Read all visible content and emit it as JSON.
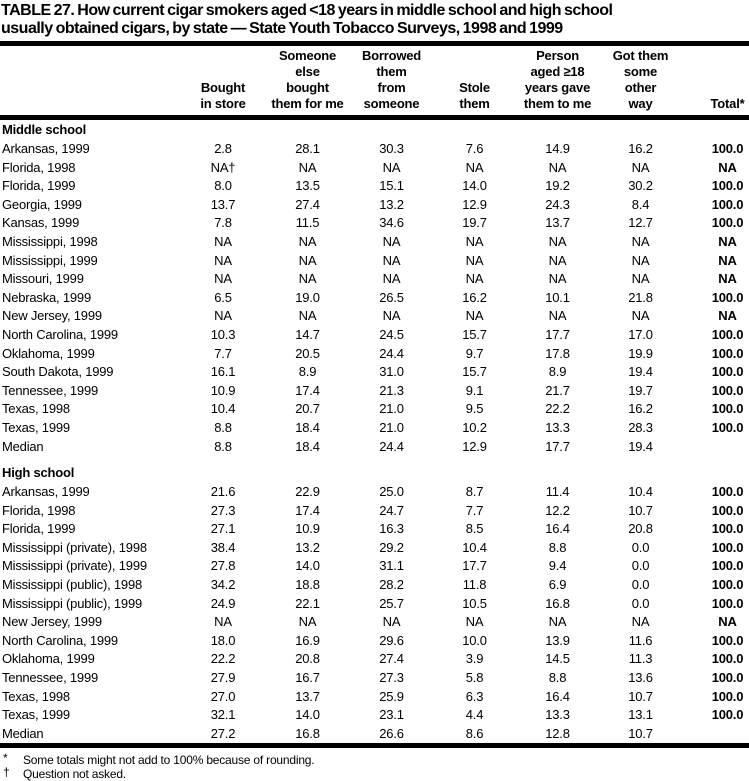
{
  "title": "TABLE 27. How current cigar smokers aged <18 years in middle school and high school\nusually obtained cigars, by state — State Youth Tobacco Surveys, 1998 and 1999",
  "table": {
    "column_headers": [
      "",
      "Bought\nin store",
      "Someone\nelse\nbought\nthem for me",
      "Borrowed\nthem\nfrom\nsomeone",
      "Stole\nthem",
      "Person\naged ≥18\nyears gave\nthem to me",
      "Got them\nsome\nother\nway",
      "Total*"
    ],
    "sections": [
      {
        "label": "Middle school",
        "rows": [
          [
            "Arkansas, 1999",
            "2.8",
            "28.1",
            "30.3",
            "7.6",
            "14.9",
            "16.2",
            "100.0"
          ],
          [
            "Florida, 1998",
            "NA†",
            "NA",
            "NA",
            "NA",
            "NA",
            "NA",
            "NA"
          ],
          [
            "Florida, 1999",
            "8.0",
            "13.5",
            "15.1",
            "14.0",
            "19.2",
            "30.2",
            "100.0"
          ],
          [
            "Georgia, 1999",
            "13.7",
            "27.4",
            "13.2",
            "12.9",
            "24.3",
            "8.4",
            "100.0"
          ],
          [
            "Kansas, 1999",
            "7.8",
            "11.5",
            "34.6",
            "19.7",
            "13.7",
            "12.7",
            "100.0"
          ],
          [
            "Mississippi, 1998",
            "NA",
            "NA",
            "NA",
            "NA",
            "NA",
            "NA",
            "NA"
          ],
          [
            "Mississippi, 1999",
            "NA",
            "NA",
            "NA",
            "NA",
            "NA",
            "NA",
            "NA"
          ],
          [
            "Missouri, 1999",
            "NA",
            "NA",
            "NA",
            "NA",
            "NA",
            "NA",
            "NA"
          ],
          [
            "Nebraska, 1999",
            "6.5",
            "19.0",
            "26.5",
            "16.2",
            "10.1",
            "21.8",
            "100.0"
          ],
          [
            "New Jersey, 1999",
            "NA",
            "NA",
            "NA",
            "NA",
            "NA",
            "NA",
            "NA"
          ],
          [
            "North Carolina, 1999",
            "10.3",
            "14.7",
            "24.5",
            "15.7",
            "17.7",
            "17.0",
            "100.0"
          ],
          [
            "Oklahoma, 1999",
            "7.7",
            "20.5",
            "24.4",
            "9.7",
            "17.8",
            "19.9",
            "100.0"
          ],
          [
            "South Dakota, 1999",
            "16.1",
            "8.9",
            "31.0",
            "15.7",
            "8.9",
            "19.4",
            "100.0"
          ],
          [
            "Tennessee, 1999",
            "10.9",
            "17.4",
            "21.3",
            "9.1",
            "21.7",
            "19.7",
            "100.0"
          ],
          [
            "Texas, 1998",
            "10.4",
            "20.7",
            "21.0",
            "9.5",
            "22.2",
            "16.2",
            "100.0"
          ],
          [
            "Texas, 1999",
            "8.8",
            "18.4",
            "21.0",
            "10.2",
            "13.3",
            "28.3",
            "100.0"
          ],
          [
            "Median",
            "8.8",
            "18.4",
            "24.4",
            "12.9",
            "17.7",
            "19.4",
            ""
          ]
        ]
      },
      {
        "label": "High school",
        "rows": [
          [
            "Arkansas, 1999",
            "21.6",
            "22.9",
            "25.0",
            "8.7",
            "11.4",
            "10.4",
            "100.0"
          ],
          [
            "Florida, 1998",
            "27.3",
            "17.4",
            "24.7",
            "7.7",
            "12.2",
            "10.7",
            "100.0"
          ],
          [
            "Florida, 1999",
            "27.1",
            "10.9",
            "16.3",
            "8.5",
            "16.4",
            "20.8",
            "100.0"
          ],
          [
            "Mississippi (private), 1998",
            "38.4",
            "13.2",
            "29.2",
            "10.4",
            "8.8",
            "0.0",
            "100.0"
          ],
          [
            "Mississippi (private), 1999",
            "27.8",
            "14.0",
            "31.1",
            "17.7",
            "9.4",
            "0.0",
            "100.0"
          ],
          [
            "Mississippi (public), 1998",
            "34.2",
            "18.8",
            "28.2",
            "11.8",
            "6.9",
            "0.0",
            "100.0"
          ],
          [
            "Mississippi (public), 1999",
            "24.9",
            "22.1",
            "25.7",
            "10.5",
            "16.8",
            "0.0",
            "100.0"
          ],
          [
            "New Jersey, 1999",
            "NA",
            "NA",
            "NA",
            "NA",
            "NA",
            "NA",
            "NA"
          ],
          [
            "North Carolina, 1999",
            "18.0",
            "16.9",
            "29.6",
            "10.0",
            "13.9",
            "11.6",
            "100.0"
          ],
          [
            "Oklahoma, 1999",
            "22.2",
            "20.8",
            "27.4",
            "3.9",
            "14.5",
            "11.3",
            "100.0"
          ],
          [
            "Tennessee, 1999",
            "27.9",
            "16.7",
            "27.3",
            "5.8",
            "8.8",
            "13.6",
            "100.0"
          ],
          [
            "Texas, 1998",
            "27.0",
            "13.7",
            "25.9",
            "6.3",
            "16.4",
            "10.7",
            "100.0"
          ],
          [
            "Texas, 1999",
            "32.1",
            "14.0",
            "23.1",
            "4.4",
            "13.3",
            "13.1",
            "100.0"
          ],
          [
            "Median",
            "27.2",
            "16.8",
            "26.6",
            "8.6",
            "12.8",
            "10.7",
            ""
          ]
        ]
      }
    ]
  },
  "footnotes": [
    {
      "marker": "*",
      "text": "Some totals might not add to 100% because of rounding."
    },
    {
      "marker": "†",
      "text": "Question not asked."
    }
  ]
}
